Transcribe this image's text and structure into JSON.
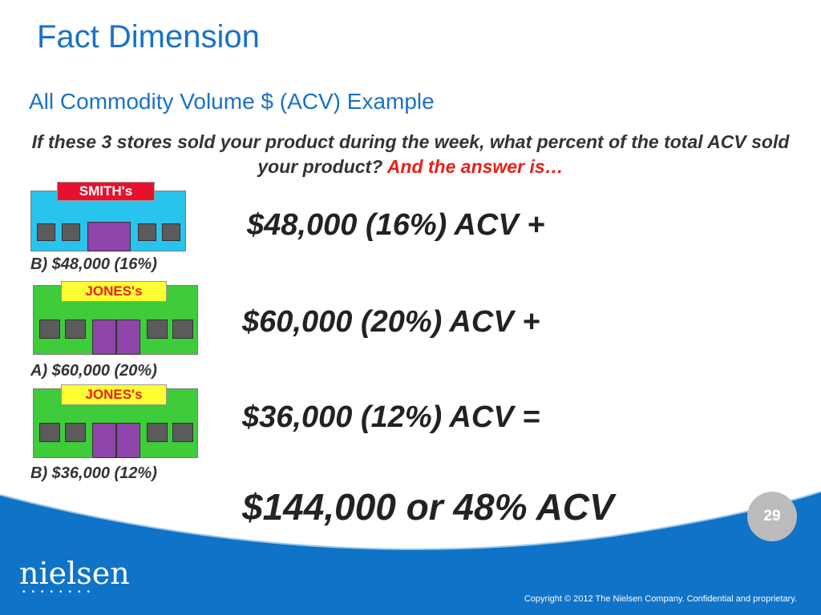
{
  "slide": {
    "title": "Fact Dimension",
    "subtitle": "All Commodity Volume $ (ACV) Example",
    "question": "If these 3 stores sold your product during the week, what percent of the total ACV sold your product?",
    "answer_lead": "And the answer is…",
    "page_number": "29",
    "logo": "nielsen",
    "copyright": "Copyright © 2012 The Nielsen Company. Confidential and proprietary."
  },
  "stores": [
    {
      "sign": "SMITH's",
      "label": "B) $48,000  (16%)",
      "wall_color": "#29c4ee",
      "sign_color": "#e8112d",
      "sign_text_color": "#ffffff"
    },
    {
      "sign": "JONES's",
      "label": "A) $60,000  (20%)",
      "wall_color": "#3ecc3a",
      "sign_color": "#ffff33",
      "sign_text_color": "#e8201a"
    },
    {
      "sign": "JONES's",
      "label": "B) $36,000  (12%)",
      "wall_color": "#3ecc3a",
      "sign_color": "#ffff33",
      "sign_text_color": "#e8201a"
    }
  ],
  "acv_lines": [
    "$48,000 (16%) ACV +",
    "$60,000 (20%) ACV +",
    "$36,000 (12%) ACV =",
    "$144,000 or 48% ACV"
  ],
  "colors": {
    "brand_blue": "#1a72c4",
    "wave_blue": "#0f73c8"
  }
}
